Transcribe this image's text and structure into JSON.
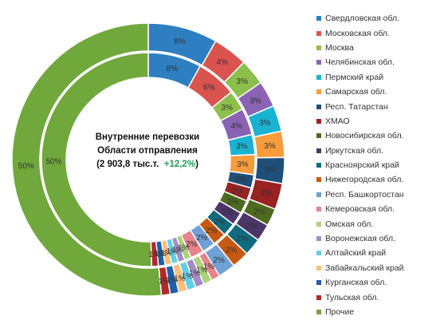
{
  "chart_data": {
    "type": "pie",
    "subtype": "double-donut",
    "title_lines": [
      "Внутренние перевозки",
      "Области отправления"
    ],
    "total_text": "(2 903,8 тыс.т.",
    "change_text": "+12,2%",
    "total_close": ")",
    "categories": [
      "Свердловская обл.",
      "Московская обл.",
      "Москва",
      "Челябинская обл.",
      "Пермский край",
      "Самарская обл.",
      "Респ. Татарстан",
      "ХМАО",
      "Новосибирская обл.",
      "Иркутская обл.",
      "Красноярский край",
      "Нижегородская обл.",
      "Респ. Башкортостан",
      "Кемеровская обл.",
      "Омская обл.",
      "Воронежская обл.",
      "Алтайский край",
      "Забайкальский край",
      "Курганская обл.",
      "Тульская обл.",
      "Прочие"
    ],
    "colors": [
      "#2e7fc1",
      "#d9534f",
      "#8dbf4b",
      "#8a63b4",
      "#19b3d1",
      "#f79b3c",
      "#1f4e79",
      "#992222",
      "#4e6a1f",
      "#4b3569",
      "#116b7f",
      "#c65911",
      "#6fa0d6",
      "#e8838a",
      "#aed27a",
      "#a38cc6",
      "#5fd0e6",
      "#fbc07a",
      "#1d5fa8",
      "#b02a2a",
      "#70a83c"
    ],
    "series": [
      {
        "name": "outer",
        "values": [
          8,
          4,
          3,
          3,
          3,
          3,
          3,
          3,
          2,
          2,
          2,
          2,
          2,
          1,
          1,
          1,
          1,
          1,
          1,
          1,
          50
        ],
        "labels": [
          "8%",
          "4%",
          "3%",
          "3%",
          "3%",
          "3%",
          "3%",
          "3%",
          "2%",
          "2%",
          "2%",
          "2%",
          "2%",
          "1%",
          "1%",
          "1%",
          "1%",
          "1%",
          "1%",
          "1%",
          "50%"
        ]
      },
      {
        "name": "inner",
        "values": [
          8,
          6,
          3,
          4,
          3,
          3,
          2,
          2,
          2,
          2,
          2,
          2,
          2,
          2,
          1,
          1,
          1,
          1,
          1,
          1,
          50
        ],
        "labels": [
          "8%",
          "6%",
          "3%",
          "4%",
          "3%",
          "3%",
          "2%",
          "2%",
          "2%",
          "2%",
          "2%",
          "2%",
          "2%",
          "2%",
          "1%",
          "1%",
          "1%",
          "1%",
          "1%",
          "1%",
          "50%"
        ]
      }
    ],
    "legend_position": "right"
  }
}
